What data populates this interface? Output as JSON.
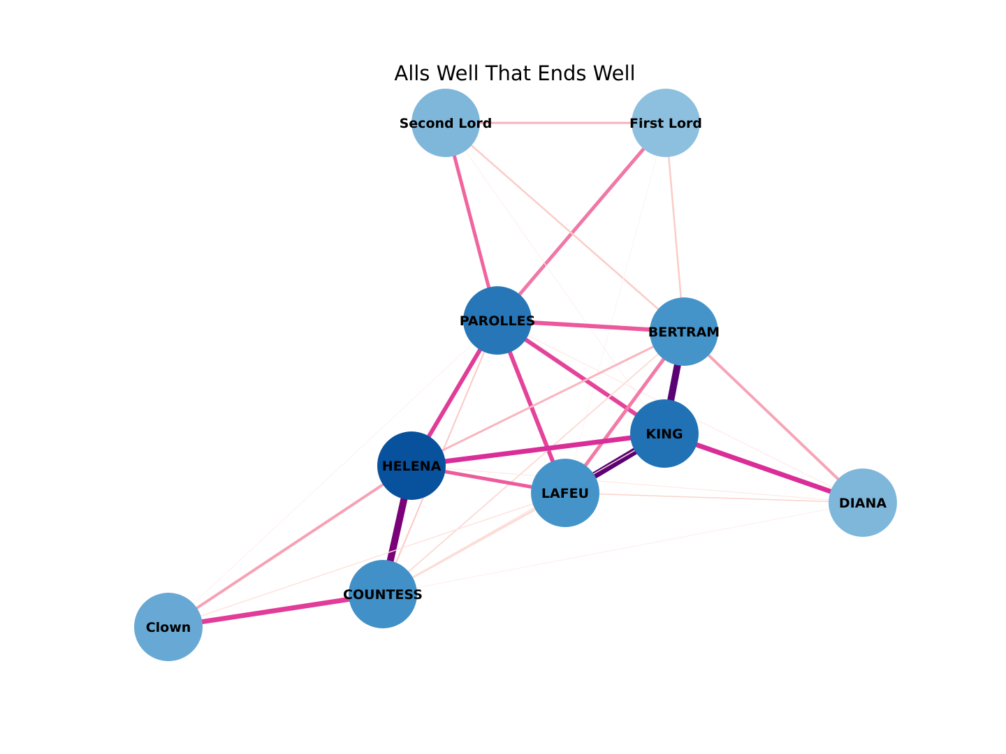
{
  "title": "Alls Well That Ends Well",
  "nodes": [
    {
      "id": "second_lord",
      "label": "Second Lord",
      "color": "#7fb7db"
    },
    {
      "id": "first_lord",
      "label": "First Lord",
      "color": "#8dc0df"
    },
    {
      "id": "parolles",
      "label": "PAROLLES",
      "color": "#2777b8"
    },
    {
      "id": "bertram",
      "label": "BERTRAM",
      "color": "#4594c9"
    },
    {
      "id": "king",
      "label": "KING",
      "color": "#2171b5"
    },
    {
      "id": "helena",
      "label": "HELENA",
      "color": "#08519c"
    },
    {
      "id": "lafeu",
      "label": "LAFEU",
      "color": "#4594c9"
    },
    {
      "id": "diana",
      "label": "DIANA",
      "color": "#7fb7db"
    },
    {
      "id": "countess",
      "label": "COUNTESS",
      "color": "#4190c7"
    },
    {
      "id": "clown",
      "label": "Clown",
      "color": "#67a9d4"
    }
  ],
  "edges": [
    {
      "source": "second_lord",
      "target": "first_lord",
      "color": "#f9b0bd",
      "weight": 3
    },
    {
      "source": "second_lord",
      "target": "parolles",
      "color": "#f0649f",
      "weight": 5
    },
    {
      "source": "first_lord",
      "target": "parolles",
      "color": "#f077a6",
      "weight": 5
    },
    {
      "source": "second_lord",
      "target": "bertram",
      "color": "#fbccc6",
      "weight": 2.5
    },
    {
      "source": "first_lord",
      "target": "bertram",
      "color": "#fbccc6",
      "weight": 2.5
    },
    {
      "source": "second_lord",
      "target": "king",
      "color": "#fdeeee",
      "weight": 1
    },
    {
      "source": "first_lord",
      "target": "lafeu",
      "color": "#fef3f2",
      "weight": 1
    },
    {
      "source": "parolles",
      "target": "bertram",
      "color": "#ec589b",
      "weight": 6
    },
    {
      "source": "parolles",
      "target": "king",
      "color": "#e4439a",
      "weight": 6
    },
    {
      "source": "parolles",
      "target": "helena",
      "color": "#e03c98",
      "weight": 6
    },
    {
      "source": "parolles",
      "target": "lafeu",
      "color": "#e4439a",
      "weight": 6
    },
    {
      "source": "parolles",
      "target": "countess",
      "color": "#fbc8c6",
      "weight": 2
    },
    {
      "source": "parolles",
      "target": "clown",
      "color": "#fdf0ef",
      "weight": 1
    },
    {
      "source": "parolles",
      "target": "diana",
      "color": "#fde5e3",
      "weight": 1
    },
    {
      "source": "bertram",
      "target": "king",
      "color": "#5b0273",
      "weight": 10
    },
    {
      "source": "bertram",
      "target": "lafeu",
      "color": "#f27aa6",
      "weight": 5
    },
    {
      "source": "bertram",
      "target": "helena",
      "color": "#f8b5be",
      "weight": 3
    },
    {
      "source": "bertram",
      "target": "diana",
      "color": "#f7a4b8",
      "weight": 4
    },
    {
      "source": "bertram",
      "target": "countess",
      "color": "#fcdcd8",
      "weight": 2
    },
    {
      "source": "king",
      "target": "helena",
      "color": "#d92e97",
      "weight": 7
    },
    {
      "source": "king",
      "target": "lafeu",
      "color": "#5b0273",
      "weight": 10
    },
    {
      "source": "king",
      "target": "diana",
      "color": "#d92e97",
      "weight": 7
    },
    {
      "source": "king",
      "target": "countess",
      "color": "#fde0dc",
      "weight": 1.5
    },
    {
      "source": "helena",
      "target": "lafeu",
      "color": "#ec5b9c",
      "weight": 5
    },
    {
      "source": "helena",
      "target": "countess",
      "color": "#7a0178",
      "weight": 10
    },
    {
      "source": "helena",
      "target": "clown",
      "color": "#f7a1b5",
      "weight": 4
    },
    {
      "source": "helena",
      "target": "diana",
      "color": "#fde5e1",
      "weight": 1
    },
    {
      "source": "lafeu",
      "target": "diana",
      "color": "#fad3cc",
      "weight": 1.5
    },
    {
      "source": "lafeu",
      "target": "countess",
      "color": "#fcdcd6",
      "weight": 3
    },
    {
      "source": "lafeu",
      "target": "clown",
      "color": "#fde3df",
      "weight": 1.5
    },
    {
      "source": "countess",
      "target": "clown",
      "color": "#e03c98",
      "weight": 7
    },
    {
      "source": "countess",
      "target": "diana",
      "color": "#fdeeeb",
      "weight": 1
    }
  ]
}
